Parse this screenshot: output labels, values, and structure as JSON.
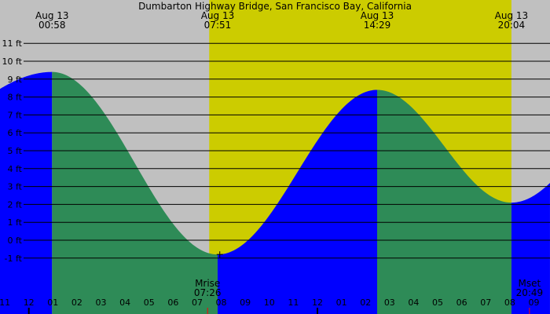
{
  "chart_data": {
    "type": "area",
    "title": "Dumbarton Highway Bridge, San Francisco Bay, California",
    "y_unit": "ft",
    "ylim": [
      -2,
      12
    ],
    "grid": true,
    "daylight_hours": [
      7.5,
      20.0667
    ],
    "extremes": [
      {
        "date": "Aug 13",
        "time": "00:58",
        "type": "high",
        "height": 9.4
      },
      {
        "date": "Aug 13",
        "time": "07:51",
        "type": "low",
        "height": -0.8
      },
      {
        "date": "Aug 13",
        "time": "14:29",
        "type": "high",
        "height": 8.4
      },
      {
        "date": "Aug 13",
        "time": "20:04",
        "type": "low",
        "height": 2.1
      }
    ],
    "x_hour_range": [
      -1.2,
      21.67
    ],
    "end_heights": {
      "start": 7.3,
      "end": 3.2
    },
    "y_ticks": [
      {
        "value": 11,
        "label": "11 ft"
      },
      {
        "value": 10,
        "label": "10 ft"
      },
      {
        "value": 9,
        "label": "9 ft"
      },
      {
        "value": 8,
        "label": "8 ft"
      },
      {
        "value": 7,
        "label": "7 ft"
      },
      {
        "value": 6,
        "label": "6 ft"
      },
      {
        "value": 5,
        "label": "5 ft"
      },
      {
        "value": 4,
        "label": "4 ft"
      },
      {
        "value": 3,
        "label": "3 ft"
      },
      {
        "value": 2,
        "label": "2 ft"
      },
      {
        "value": 1,
        "label": "1 ft"
      },
      {
        "value": 0,
        "label": "0 ft"
      },
      {
        "value": -1,
        "label": "-1 ft"
      }
    ],
    "x_ticks": [
      {
        "hour": -1,
        "label": "11"
      },
      {
        "hour": 0,
        "label": "12"
      },
      {
        "hour": 1,
        "label": "01"
      },
      {
        "hour": 2,
        "label": "02"
      },
      {
        "hour": 3,
        "label": "03"
      },
      {
        "hour": 4,
        "label": "04"
      },
      {
        "hour": 5,
        "label": "05"
      },
      {
        "hour": 6,
        "label": "06"
      },
      {
        "hour": 7,
        "label": "07"
      },
      {
        "hour": 8,
        "label": "08"
      },
      {
        "hour": 9,
        "label": "09"
      },
      {
        "hour": 10,
        "label": "10"
      },
      {
        "hour": 11,
        "label": "11"
      },
      {
        "hour": 12,
        "label": "12"
      },
      {
        "hour": 13,
        "label": "01"
      },
      {
        "hour": 14,
        "label": "02"
      },
      {
        "hour": 15,
        "label": "03"
      },
      {
        "hour": 16,
        "label": "04"
      },
      {
        "hour": 17,
        "label": "05"
      },
      {
        "hour": 18,
        "label": "06"
      },
      {
        "hour": 19,
        "label": "07"
      },
      {
        "hour": 20,
        "label": "08"
      },
      {
        "hour": 21,
        "label": "09"
      }
    ],
    "moon_events": [
      {
        "label": "Mrise",
        "time": "07:26",
        "hour": 7.433
      },
      {
        "label": "Mset",
        "time": "20:49",
        "hour": 20.817
      }
    ],
    "colors": {
      "night": "#c0c0c0",
      "day": "#cccc00",
      "falling": "#2e8b57",
      "rising": "#0000ff",
      "grid": "#000000",
      "tick_marker": "#ff0000"
    }
  }
}
